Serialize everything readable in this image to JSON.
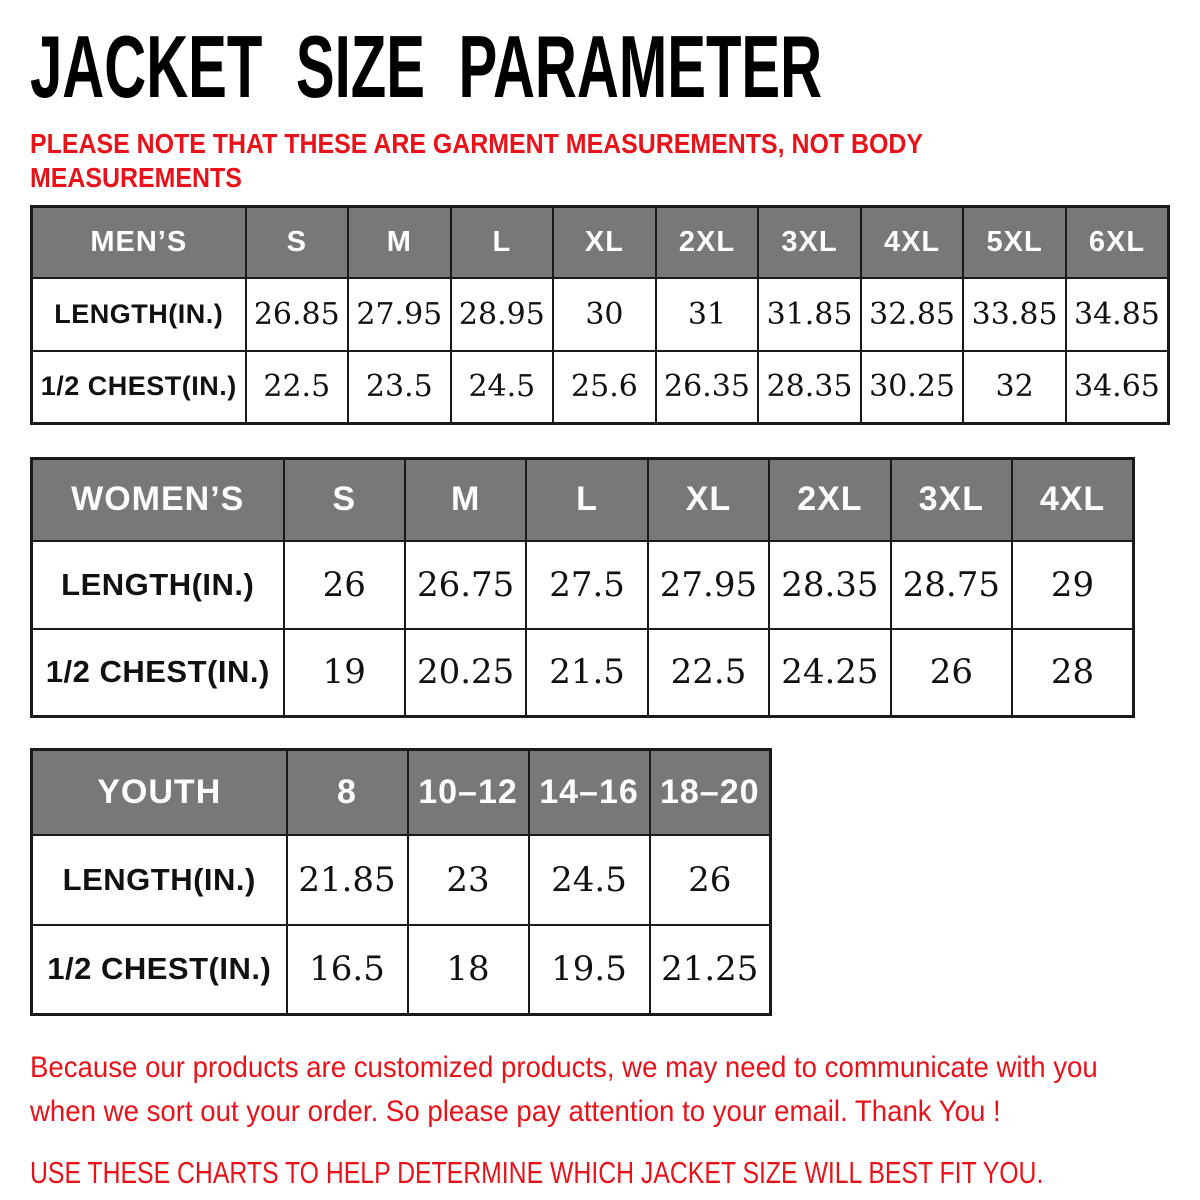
{
  "title": "JACKET SIZE PARAMETER",
  "subtitle_lines": [
    "PLEASE NOTE THAT THESE ARE GARMENT MEASUREMENTS, NOT BODY",
    "MEASUREMENTS"
  ],
  "colors": {
    "accent_red": "#e8131a",
    "header_gray": "#787878",
    "border_black": "#1a1a1a",
    "header_text": "#fdfdfd"
  },
  "tables": [
    {
      "id": "mens",
      "header": [
        "MEN’S",
        "S",
        "M",
        "L",
        "XL",
        "2XL",
        "3XL",
        "4XL",
        "5XL",
        "6XL"
      ],
      "rows": [
        {
          "label": "LENGTH(IN.)",
          "values": [
            "26.85",
            "27.95",
            "28.95",
            "30",
            "31",
            "31.85",
            "32.85",
            "33.85",
            "34.85"
          ]
        },
        {
          "label": "1/2 CHEST(IN.)",
          "values": [
            "22.5",
            "23.5",
            "24.5",
            "25.6",
            "26.35",
            "28.35",
            "30.25",
            "32",
            "34.65"
          ]
        }
      ]
    },
    {
      "id": "womens",
      "header": [
        "WOMEN’S",
        "S",
        "M",
        "L",
        "XL",
        "2XL",
        "3XL",
        "4XL"
      ],
      "rows": [
        {
          "label": "LENGTH(IN.)",
          "values": [
            "26",
            "26.75",
            "27.5",
            "27.95",
            "28.35",
            "28.75",
            "29"
          ]
        },
        {
          "label": "1/2 CHEST(IN.)",
          "values": [
            "19",
            "20.25",
            "21.5",
            "22.5",
            "24.25",
            "26",
            "28"
          ]
        }
      ]
    },
    {
      "id": "youth",
      "header": [
        "YOUTH",
        "8",
        "10–12",
        "14–16",
        "18–20"
      ],
      "rows": [
        {
          "label": "LENGTH(IN.)",
          "values": [
            "21.85",
            "23",
            "24.5",
            "26"
          ]
        },
        {
          "label": "1/2 CHEST(IN.)",
          "values": [
            "16.5",
            "18",
            "19.5",
            "21.25"
          ]
        }
      ]
    }
  ],
  "footer": {
    "note_lines": [
      "Because our products are customized products, we may need to communicate with you",
      "when we sort out your order. So please pay attention to your email. Thank You !"
    ],
    "cta": "USE THESE CHARTS TO HELP DETERMINE WHICH JACKET SIZE WILL BEST FIT YOU."
  }
}
